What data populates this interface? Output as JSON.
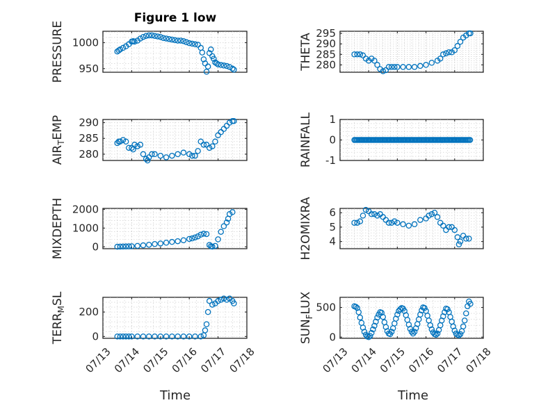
{
  "figure_title": "Figure 1 low",
  "colors": {
    "marker": "#0072BD",
    "axis": "#262626"
  },
  "x_ticks": [
    "07/13",
    "07/14",
    "07/15",
    "07/16",
    "07/17",
    "07/18"
  ],
  "x_label": "Time",
  "chart_data": [
    {
      "type": "scatter",
      "name": "PRESSURE",
      "ylabel": "PRESSURE",
      "ylabel_sub": "",
      "title": "Figure 1 low",
      "ylim": [
        943,
        1022
      ],
      "yticks": [
        950,
        1000
      ],
      "xlim": [
        "07/13",
        "07/18"
      ],
      "x_days": [
        0.5,
        0.55,
        0.6,
        0.7,
        0.8,
        0.9,
        1.0,
        1.05,
        1.1,
        1.2,
        1.3,
        1.4,
        1.5,
        1.6,
        1.7,
        1.8,
        1.9,
        2.0,
        2.1,
        2.2,
        2.3,
        2.4,
        2.5,
        2.6,
        2.7,
        2.8,
        2.9,
        3.0,
        3.1,
        3.2,
        3.3,
        3.4,
        3.45,
        3.5,
        3.55,
        3.6,
        3.65,
        3.7,
        3.75,
        3.8,
        3.85,
        3.9,
        3.95,
        4.0,
        4.1,
        4.2,
        4.3,
        4.4,
        4.5,
        4.55
      ],
      "y": [
        983,
        985,
        987,
        990,
        993,
        997,
        1002,
        1003,
        1002,
        1004,
        1008,
        1011,
        1013,
        1014,
        1014,
        1013,
        1012,
        1011,
        1009,
        1008,
        1007,
        1006,
        1005,
        1004,
        1004,
        1003,
        1001,
        999,
        998,
        997,
        996,
        990,
        981,
        968,
        960,
        944,
        954,
        980,
        987,
        974,
        969,
        962,
        960,
        958,
        957,
        956,
        955,
        953,
        950,
        948
      ]
    },
    {
      "type": "scatter",
      "name": "THETA",
      "ylabel": "THETA",
      "ylabel_sub": "",
      "ylim": [
        276.5,
        296
      ],
      "yticks": [
        280,
        285,
        290,
        295
      ],
      "x_days": [
        0.5,
        0.6,
        0.7,
        0.8,
        0.9,
        1.0,
        1.1,
        1.2,
        1.3,
        1.4,
        1.5,
        1.6,
        1.7,
        1.8,
        1.9,
        2.0,
        2.2,
        2.4,
        2.6,
        2.8,
        3.0,
        3.2,
        3.4,
        3.5,
        3.6,
        3.7,
        3.8,
        3.9,
        4.0,
        4.1,
        4.2,
        4.3,
        4.4,
        4.5,
        4.55
      ],
      "y": [
        285,
        285,
        285,
        284.5,
        283,
        282,
        283,
        282,
        280,
        278,
        277,
        277.5,
        279,
        279,
        279,
        279,
        279,
        279,
        279,
        279.5,
        280,
        281,
        282,
        283,
        285,
        285.5,
        286,
        286,
        287,
        289,
        291,
        293,
        294,
        295,
        295
      ]
    },
    {
      "type": "scatter",
      "name": "AIR_TEMP",
      "ylabel": "AIR",
      "ylabel_sub": "T",
      "ylabel_rest": "EMP",
      "ylim": [
        278,
        291
      ],
      "yticks": [
        280,
        285,
        290
      ],
      "x_days": [
        0.5,
        0.55,
        0.6,
        0.7,
        0.8,
        0.9,
        1.0,
        1.05,
        1.1,
        1.2,
        1.3,
        1.4,
        1.5,
        1.55,
        1.6,
        1.7,
        1.8,
        2.0,
        2.2,
        2.4,
        2.6,
        2.8,
        3.0,
        3.1,
        3.2,
        3.3,
        3.4,
        3.5,
        3.6,
        3.7,
        3.8,
        3.9,
        4.0,
        4.1,
        4.2,
        4.3,
        4.4,
        4.5,
        4.55
      ],
      "y": [
        283.5,
        284,
        284,
        284.5,
        284,
        282,
        282,
        281.5,
        283,
        282.5,
        283,
        280,
        278.5,
        278,
        279,
        280,
        280,
        279.5,
        279,
        279.5,
        280,
        280.5,
        280,
        279.5,
        279.5,
        281,
        284,
        283,
        283,
        282,
        282.5,
        284,
        286,
        287,
        288,
        289,
        290,
        290.5,
        290.5
      ]
    },
    {
      "type": "scatter",
      "name": "RAINFALL",
      "ylabel": "RAINFALL",
      "ylabel_sub": "",
      "ylim": [
        -1,
        1
      ],
      "yticks": [
        -1,
        0,
        1
      ],
      "x_range_days": [
        0.5,
        4.55
      ],
      "y_constant": 0
    },
    {
      "type": "scatter",
      "name": "MIXDEPTH",
      "ylabel": "MIXDEPTH",
      "ylabel_sub": "",
      "ylim": [
        -100,
        2050
      ],
      "yticks": [
        0,
        1000,
        2000
      ],
      "x_days": [
        0.5,
        0.6,
        0.7,
        0.8,
        0.9,
        1.0,
        1.2,
        1.4,
        1.6,
        1.8,
        2.0,
        2.2,
        2.4,
        2.6,
        2.8,
        3.0,
        3.1,
        3.2,
        3.3,
        3.4,
        3.5,
        3.6,
        3.7,
        3.75,
        3.8,
        3.9,
        4.0,
        4.1,
        4.2,
        4.3,
        4.35,
        4.4,
        4.5
      ],
      "y": [
        5,
        10,
        15,
        20,
        25,
        30,
        50,
        80,
        110,
        150,
        180,
        220,
        260,
        300,
        350,
        420,
        450,
        500,
        560,
        650,
        700,
        680,
        100,
        30,
        10,
        50,
        400,
        800,
        1100,
        1300,
        1500,
        1750,
        1850
      ]
    },
    {
      "type": "scatter",
      "name": "H2OMIXRA",
      "ylabel": "H2OMIXRA",
      "ylabel_sub": "",
      "ylim": [
        3.5,
        6.3
      ],
      "yticks": [
        4,
        5,
        6
      ],
      "x_days": [
        0.5,
        0.6,
        0.7,
        0.8,
        0.9,
        1.0,
        1.1,
        1.2,
        1.3,
        1.4,
        1.5,
        1.6,
        1.7,
        1.8,
        1.9,
        2.0,
        2.2,
        2.4,
        2.6,
        2.8,
        3.0,
        3.1,
        3.2,
        3.3,
        3.4,
        3.5,
        3.6,
        3.7,
        3.8,
        3.9,
        4.0,
        4.1,
        4.15,
        4.2,
        4.3,
        4.4,
        4.5
      ],
      "y": [
        5.3,
        5.3,
        5.4,
        5.8,
        6.2,
        6.1,
        5.9,
        5.9,
        5.8,
        5.9,
        5.7,
        5.5,
        5.3,
        5.3,
        5.4,
        5.3,
        5.2,
        5.1,
        5.2,
        5.5,
        5.6,
        5.8,
        5.9,
        6.0,
        5.7,
        5.3,
        5.1,
        4.8,
        5.0,
        5.0,
        4.8,
        4.3,
        3.8,
        4.0,
        4.4,
        4.2,
        4.2
      ]
    },
    {
      "type": "scatter",
      "name": "TERR_MSL",
      "ylabel": "TERR",
      "ylabel_sub": "M",
      "ylabel_rest": "SL",
      "ylim": [
        -15,
        320
      ],
      "yticks": [
        0,
        200
      ],
      "x_days": [
        0.5,
        0.6,
        0.7,
        0.8,
        0.9,
        1.0,
        1.2,
        1.4,
        1.6,
        1.8,
        2.0,
        2.2,
        2.4,
        2.6,
        2.8,
        3.0,
        3.2,
        3.4,
        3.5,
        3.55,
        3.6,
        3.65,
        3.7,
        3.8,
        3.9,
        4.0,
        4.1,
        4.2,
        4.3,
        4.4,
        4.5,
        4.55
      ],
      "y": [
        0,
        0,
        0,
        0,
        0,
        0,
        0,
        0,
        0,
        0,
        0,
        0,
        0,
        0,
        0,
        0,
        0,
        0,
        10,
        50,
        100,
        200,
        290,
        260,
        270,
        290,
        300,
        310,
        300,
        310,
        290,
        270
      ]
    },
    {
      "type": "scatter",
      "name": "SUN_FLUX",
      "ylabel": "SUN",
      "ylabel_sub": "F",
      "ylabel_rest": "LUX",
      "ylim": [
        -20,
        670
      ],
      "yticks": [
        0,
        500
      ],
      "x_days": [
        0.5,
        0.55,
        0.6,
        0.65,
        0.7,
        0.75,
        0.8,
        0.85,
        0.9,
        0.95,
        1.0,
        1.05,
        1.1,
        1.15,
        1.2,
        1.25,
        1.3,
        1.35,
        1.4,
        1.45,
        1.5,
        1.55,
        1.6,
        1.65,
        1.7,
        1.75,
        1.8,
        1.85,
        1.9,
        1.95,
        2.0,
        2.05,
        2.1,
        2.15,
        2.2,
        2.25,
        2.3,
        2.35,
        2.4,
        2.45,
        2.5,
        2.55,
        2.6,
        2.65,
        2.7,
        2.75,
        2.8,
        2.85,
        2.9,
        2.95,
        3.0,
        3.05,
        3.1,
        3.15,
        3.2,
        3.25,
        3.3,
        3.35,
        3.4,
        3.45,
        3.5,
        3.55,
        3.6,
        3.65,
        3.7,
        3.75,
        3.8,
        3.85,
        3.9,
        3.95,
        4.0,
        4.05,
        4.1,
        4.15,
        4.2,
        4.25,
        4.3,
        4.35,
        4.4,
        4.45,
        4.5,
        4.55
      ],
      "y": [
        520,
        510,
        490,
        420,
        330,
        240,
        160,
        90,
        40,
        10,
        0,
        20,
        70,
        130,
        190,
        260,
        330,
        380,
        420,
        410,
        340,
        250,
        170,
        100,
        60,
        50,
        90,
        150,
        230,
        310,
        380,
        440,
        470,
        490,
        480,
        440,
        370,
        290,
        210,
        140,
        90,
        60,
        90,
        150,
        220,
        300,
        380,
        450,
        500,
        490,
        440,
        360,
        280,
        200,
        130,
        80,
        50,
        40,
        60,
        120,
        200,
        280,
        350,
        420,
        480,
        470,
        420,
        340,
        260,
        180,
        110,
        60,
        40,
        30,
        50,
        100,
        180,
        280,
        400,
        520,
        600,
        560
      ]
    }
  ]
}
